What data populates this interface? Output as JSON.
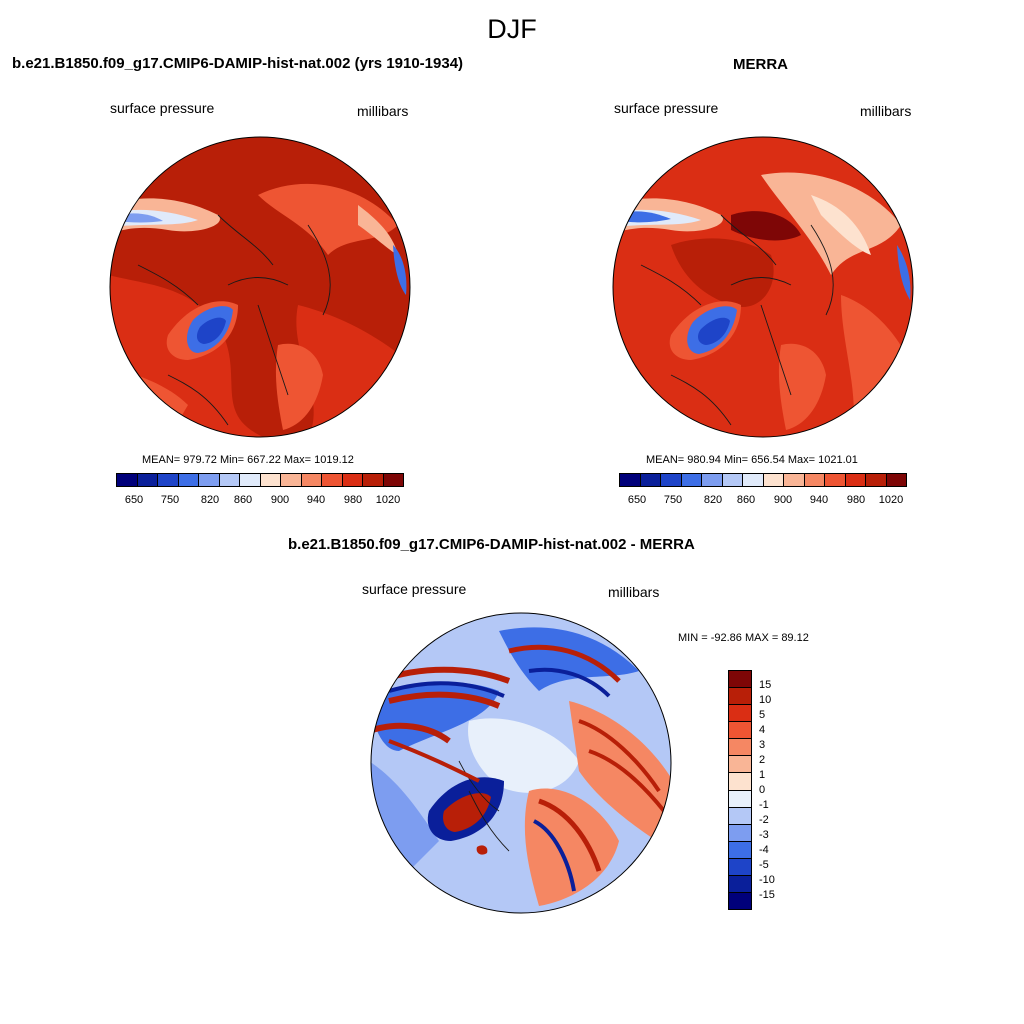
{
  "title": "DJF",
  "colors": {
    "abs": [
      "#00007a",
      "#0a1f9a",
      "#1e44c8",
      "#3d6ee6",
      "#7d9df0",
      "#b4c8f6",
      "#e0eafa",
      "#fde2cf",
      "#f9b596",
      "#f58763",
      "#ee5533",
      "#da2e14",
      "#b81f08",
      "#7e0606"
    ],
    "diff": [
      "#7e0606",
      "#b81f08",
      "#da2e14",
      "#ee5533",
      "#f58763",
      "#f9b596",
      "#fde2cf",
      "#e8f0fb",
      "#b4c8f6",
      "#7d9df0",
      "#3d6ee6",
      "#1e44c8",
      "#0a1f9a",
      "#00007a"
    ]
  },
  "panels": {
    "model": {
      "title": "b.e21.B1850.f09_g17.CMIP6-DAMIP-hist-nat.002 (yrs 1910-1934)",
      "variable": "surface pressure",
      "units": "millibars",
      "stats": "MEAN= 979.72  Min= 667.22  Max= 1019.12",
      "ticks": [
        "650",
        "750",
        "820",
        "860",
        "900",
        "940",
        "980",
        "1020"
      ]
    },
    "obs": {
      "title": "MERRA",
      "variable": "surface pressure",
      "units": "millibars",
      "stats": "MEAN= 980.94  Min= 656.54  Max= 1021.01",
      "ticks": [
        "650",
        "750",
        "820",
        "860",
        "900",
        "940",
        "980",
        "1020"
      ]
    },
    "diff": {
      "title": "b.e21.B1850.f09_g17.CMIP6-DAMIP-hist-nat.002 - MERRA",
      "variable": "surface pressure",
      "units": "millibars",
      "stats": "MIN = -92.86 MAX =  89.12",
      "ticks": [
        "15",
        "10",
        "5",
        "4",
        "3",
        "2",
        "1",
        "0",
        "-1",
        "-2",
        "-3",
        "-4",
        "-5",
        "-10",
        "-15"
      ]
    }
  }
}
